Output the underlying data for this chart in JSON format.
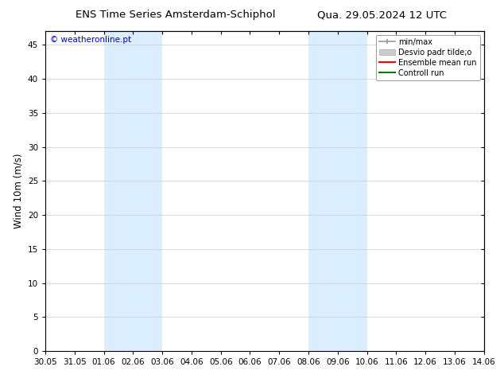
{
  "title_left": "ENS Time Series Amsterdam-Schiphol",
  "title_right": "Qua. 29.05.2024 12 UTC",
  "ylabel": "Wind 10m (m/s)",
  "watermark": "© weatheronline.pt",
  "x_tick_labels": [
    "30.05",
    "31.05",
    "01.06",
    "02.06",
    "03.06",
    "04.06",
    "05.06",
    "06.06",
    "07.06",
    "08.06",
    "09.06",
    "10.06",
    "11.06",
    "12.06",
    "13.06",
    "14.06"
  ],
  "x_tick_positions": [
    0,
    1,
    2,
    3,
    4,
    5,
    6,
    7,
    8,
    9,
    10,
    11,
    12,
    13,
    14,
    15
  ],
  "ylim": [
    0,
    47
  ],
  "yticks": [
    0,
    5,
    10,
    15,
    20,
    25,
    30,
    35,
    40,
    45
  ],
  "shaded_bands": [
    {
      "x_start": 2,
      "x_end": 4,
      "color": "#daeeff"
    },
    {
      "x_start": 9,
      "x_end": 11,
      "color": "#daeeff"
    }
  ],
  "legend_entries": [
    {
      "label": "min/max",
      "color": "#999999",
      "lw": 1.2,
      "style": "line_with_caps"
    },
    {
      "label": "Desvio padr tilde;o",
      "color": "#cccccc",
      "lw": 7,
      "style": "thick"
    },
    {
      "label": "Ensemble mean run",
      "color": "#ff0000",
      "lw": 1.5,
      "style": "line"
    },
    {
      "label": "Controll run",
      "color": "#007700",
      "lw": 1.5,
      "style": "line"
    }
  ],
  "bg_color": "#ffffff",
  "plot_bg_color": "#ffffff",
  "title_fontsize": 9.5,
  "ylabel_fontsize": 8.5,
  "tick_fontsize": 7.5,
  "watermark_color": "#0000cc",
  "watermark_fontsize": 7.5,
  "legend_fontsize": 7,
  "grid_color": "#cccccc",
  "border_color": "#000000"
}
